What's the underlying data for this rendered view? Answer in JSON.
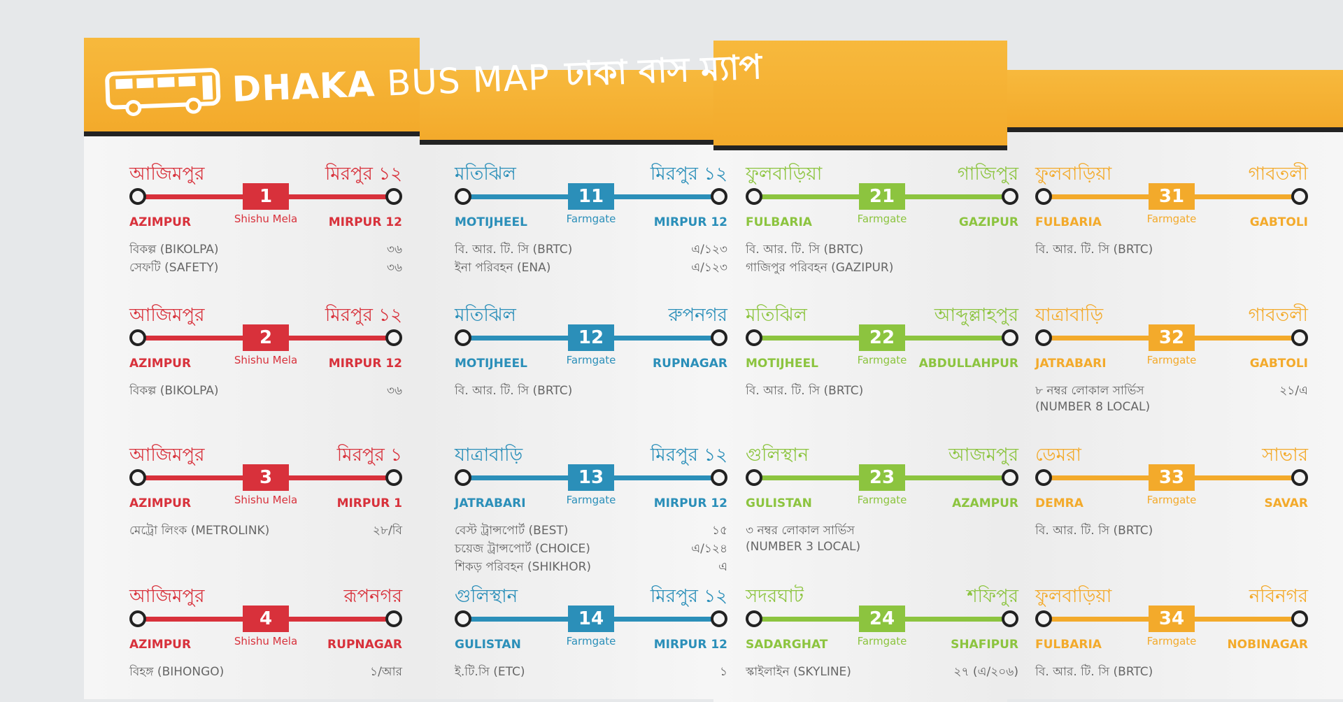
{
  "header": {
    "title_en_bold": "DHAKA",
    "title_en": "BUS MAP",
    "title_bn": "ঢাকা বাস ম্যাপ"
  },
  "colors": {
    "red": "#d8313b",
    "blue": "#2b8fb9",
    "green": "#8cc43f",
    "orange": "#f3aa2b",
    "header": "#f7b93d"
  },
  "icons": {
    "logo": "bus-icon"
  },
  "routes": [
    {
      "num": "1",
      "color": "red",
      "from_bn": "আজিমপুর",
      "to_bn": "মিরপুর ১২",
      "from_en": "AZIMPUR",
      "to_en": "MIRPUR 12",
      "via": "Shishu Mela",
      "operators": [
        {
          "name": "বিকল্প (BIKOLPA)",
          "code": "৩৬"
        },
        {
          "name": "সেফটি (SAFETY)",
          "code": "৩৬"
        }
      ]
    },
    {
      "num": "2",
      "color": "red",
      "from_bn": "আজিমপুর",
      "to_bn": "মিরপুর ১২",
      "from_en": "AZIMPUR",
      "to_en": "MIRPUR 12",
      "via": "Shishu Mela",
      "operators": [
        {
          "name": "বিকল্প (BIKOLPA)",
          "code": "৩৬"
        }
      ]
    },
    {
      "num": "3",
      "color": "red",
      "from_bn": "আজিমপুর",
      "to_bn": "মিরপুর ১",
      "from_en": "AZIMPUR",
      "to_en": "MIRPUR 1",
      "via": "Shishu Mela",
      "operators": [
        {
          "name": "মেট্রো লিংক (METROLINK)",
          "code": "২৮/বি"
        }
      ]
    },
    {
      "num": "4",
      "color": "red",
      "from_bn": "আজিমপুর",
      "to_bn": "রূপনগর",
      "from_en": "AZIMPUR",
      "to_en": "RUPNAGAR",
      "via": "Shishu Mela",
      "operators": [
        {
          "name": "বিহঙ্গ (BIHONGO)",
          "code": "১/আর"
        }
      ]
    },
    {
      "num": "11",
      "color": "blue",
      "from_bn": "মতিঝিল",
      "to_bn": "মিরপুর ১২",
      "from_en": "MOTIJHEEL",
      "to_en": "MIRPUR 12",
      "via": "Farmgate",
      "operators": [
        {
          "name": "বি. আর. টি. সি (BRTC)",
          "code": "এ/১২৩"
        },
        {
          "name": "ইনা পরিবহন (ENA)",
          "code": "এ/১২৩"
        }
      ]
    },
    {
      "num": "12",
      "color": "blue",
      "from_bn": "মতিঝিল",
      "to_bn": "রুপনগর",
      "from_en": "MOTIJHEEL",
      "to_en": "RUPNAGAR",
      "via": "Farmgate",
      "operators": [
        {
          "name": "বি. আর. টি. সি (BRTC)",
          "code": ""
        }
      ]
    },
    {
      "num": "13",
      "color": "blue",
      "from_bn": "যাত্রাবাড়ি",
      "to_bn": "মিরপুর ১২",
      "from_en": "JATRABARI",
      "to_en": "MIRPUR 12",
      "via": "Farmgate",
      "operators": [
        {
          "name": "বেস্ট ট্রান্সপোর্ট (BEST)",
          "code": "১৫"
        },
        {
          "name": "চয়েজ ট্রান্সপোর্ট (CHOICE)",
          "code": "এ/১২৪"
        },
        {
          "name": "শিকড় পরিবহন (SHIKHOR)",
          "code": "এ"
        }
      ]
    },
    {
      "num": "14",
      "color": "blue",
      "from_bn": "গুলিস্থান",
      "to_bn": "মিরপুর ১২",
      "from_en": "GULISTAN",
      "to_en": "MIRPUR 12",
      "via": "Farmgate",
      "operators": [
        {
          "name": "ই.টি.সি (ETC)",
          "code": "১"
        }
      ]
    },
    {
      "num": "21",
      "color": "green",
      "from_bn": "ফুলবাড়িয়া",
      "to_bn": "গাজিপুর",
      "from_en": "FULBARIA",
      "to_en": "GAZIPUR",
      "via": "Farmgate",
      "operators": [
        {
          "name": "বি. আর. টি. সি (BRTC)",
          "code": ""
        },
        {
          "name": "গাজিপুর পরিবহন (GAZIPUR)",
          "code": ""
        }
      ]
    },
    {
      "num": "22",
      "color": "green",
      "from_bn": "মতিঝিল",
      "to_bn": "আব্দুল্লাহপুর",
      "from_en": "MOTIJHEEL",
      "to_en": "ABDULLAHPUR",
      "via": "Farmgate",
      "operators": [
        {
          "name": "বি. আর. টি. সি (BRTC)",
          "code": ""
        }
      ]
    },
    {
      "num": "23",
      "color": "green",
      "from_bn": "গুলিস্থান",
      "to_bn": "আজমপুর",
      "from_en": "GULISTAN",
      "to_en": "AZAMPUR",
      "via": "Farmgate",
      "operators": [
        {
          "name": "৩ নম্বর লোকাল সার্ভিস",
          "code": ""
        },
        {
          "name": "(NUMBER 3 LOCAL)",
          "code": ""
        }
      ]
    },
    {
      "num": "24",
      "color": "green",
      "from_bn": "সদরঘাট",
      "to_bn": "শফিপুর",
      "from_en": "SADARGHAT",
      "to_en": "SHAFIPUR",
      "via": "Farmgate",
      "operators": [
        {
          "name": "স্কাইলাইন (SKYLINE)",
          "code": "২৭ (এ/২০৬)"
        }
      ]
    },
    {
      "num": "31",
      "color": "orange",
      "from_bn": "ফুলবাড়িয়া",
      "to_bn": "গাবতলী",
      "from_en": "FULBARIA",
      "to_en": "GABTOLI",
      "via": "Farmgate",
      "operators": [
        {
          "name": "বি. আর. টি. সি (BRTC)",
          "code": ""
        }
      ]
    },
    {
      "num": "32",
      "color": "orange",
      "from_bn": "যাত্রাবাড়ি",
      "to_bn": "গাবতলী",
      "from_en": "JATRABARI",
      "to_en": "GABTOLI",
      "via": "Farmgate",
      "operators": [
        {
          "name": "৮ নম্বর লোকাল সার্ভিস",
          "code": "২১/এ"
        },
        {
          "name": "(NUMBER 8 LOCAL)",
          "code": ""
        }
      ]
    },
    {
      "num": "33",
      "color": "orange",
      "from_bn": "ডেমরা",
      "to_bn": "সাভার",
      "from_en": "DEMRA",
      "to_en": "SAVAR",
      "via": "Farmgate",
      "operators": [
        {
          "name": "বি. আর. টি. সি (BRTC)",
          "code": ""
        }
      ]
    },
    {
      "num": "34",
      "color": "orange",
      "from_bn": "ফুলবাড়িয়া",
      "to_bn": "নবিনগর",
      "from_en": "FULBARIA",
      "to_en": "NOBINAGAR",
      "via": "Farmgate",
      "operators": [
        {
          "name": "বি. আর. টি. সি (BRTC)",
          "code": ""
        }
      ]
    }
  ]
}
